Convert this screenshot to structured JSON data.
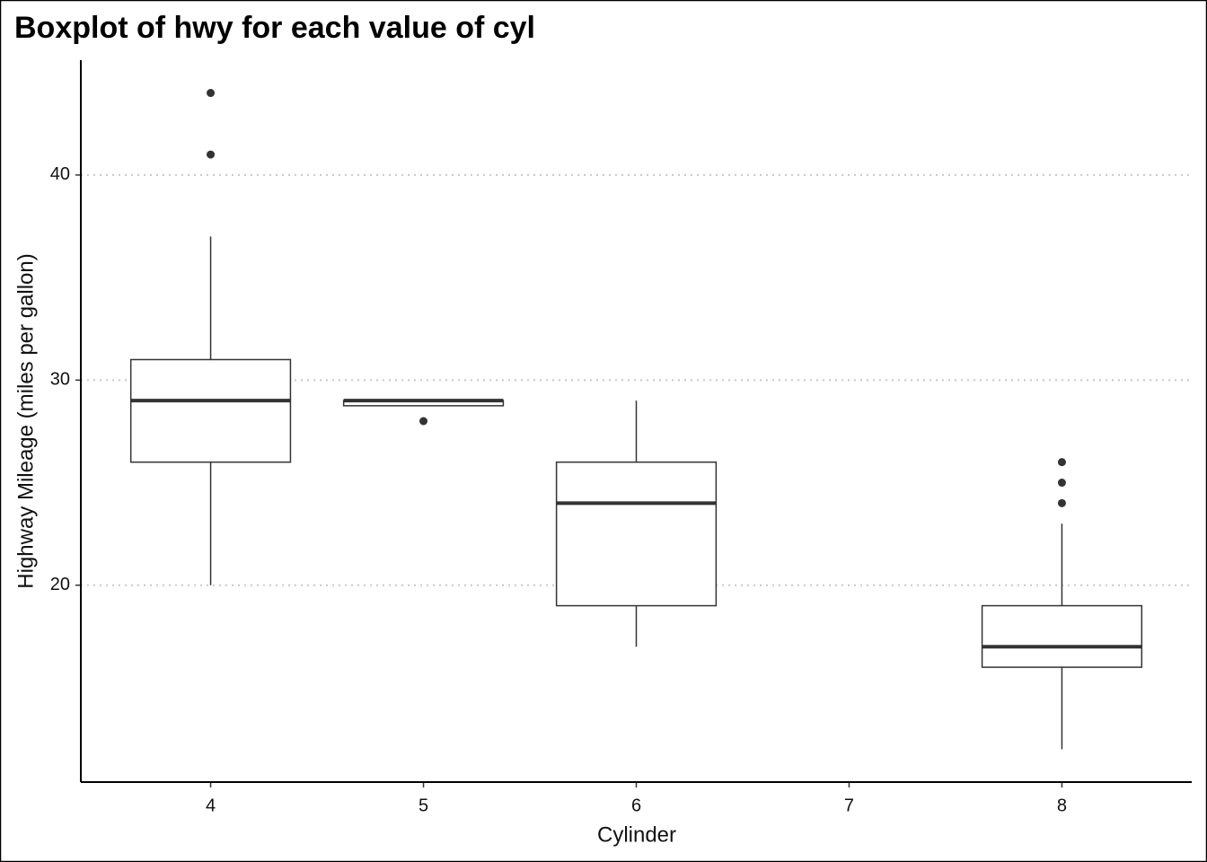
{
  "chart_data": {
    "type": "boxplot",
    "title": "Boxplot of hwy for each value of cyl",
    "x_label": "Cylinder",
    "y_label": "Highway Mileage (miles per gallon)",
    "xlim": [
      3.39,
      8.61
    ],
    "xticks": [
      4,
      5,
      6,
      7,
      8
    ],
    "ylim": [
      10.4,
      45.6
    ],
    "yticks": [
      20,
      30,
      40
    ],
    "grid": "y",
    "color": "#333333",
    "boxes": [
      {
        "x": 4,
        "whislo": 20,
        "q1": 26,
        "med": 29,
        "q3": 31,
        "whishi": 37,
        "outliers": [
          41,
          44
        ]
      },
      {
        "x": 5,
        "whislo": 28.75,
        "q1": 28.75,
        "med": 29,
        "q3": 29,
        "whishi": 29,
        "outliers": [
          28
        ]
      },
      {
        "x": 6,
        "whislo": 17,
        "q1": 19,
        "med": 24,
        "q3": 26,
        "whishi": 29,
        "outliers": []
      },
      {
        "x": 8,
        "whislo": 12,
        "q1": 16,
        "med": 17,
        "q3": 19,
        "whishi": 23,
        "outliers": [
          24,
          25,
          26
        ]
      }
    ]
  }
}
